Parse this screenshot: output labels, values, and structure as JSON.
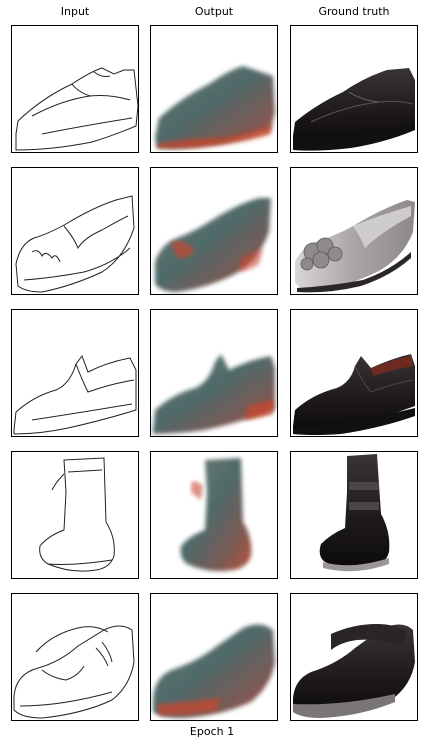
{
  "columns": [
    "Input",
    "Output",
    "Ground truth"
  ],
  "footer": "Epoch 1",
  "rows": [
    {
      "shoe": "oxford"
    },
    {
      "shoe": "embellished loafer"
    },
    {
      "shoe": "penny loafer"
    },
    {
      "shoe": "boot"
    },
    {
      "shoe": "high-top sneaker"
    }
  ]
}
